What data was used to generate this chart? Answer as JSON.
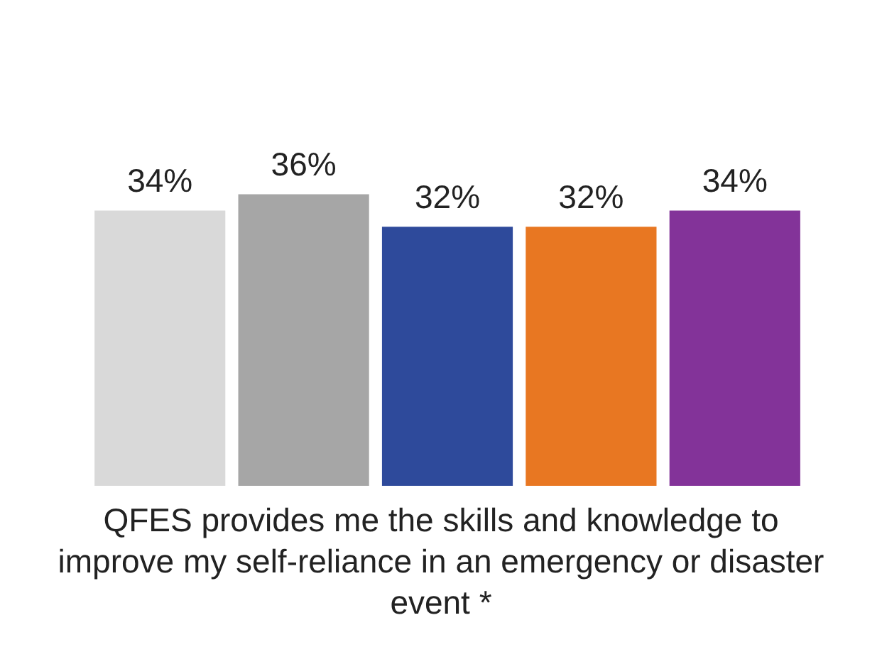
{
  "chart_data": {
    "type": "bar",
    "xlabel": "QFES provides me the skills and knowledge to improve my self-reliance in an emergency or disaster event *",
    "categories": [
      null,
      null,
      null,
      null,
      null
    ],
    "values": [
      34,
      36,
      32,
      32,
      34
    ],
    "colors": [
      "#d9d9d9",
      "#a6a6a6",
      "#2e4a9b",
      "#e87722",
      "#833399"
    ],
    "value_labels": [
      "34%",
      "36%",
      "32%",
      "32%",
      "34%"
    ],
    "tick_labels": false,
    "grid": false,
    "legend": false
  }
}
